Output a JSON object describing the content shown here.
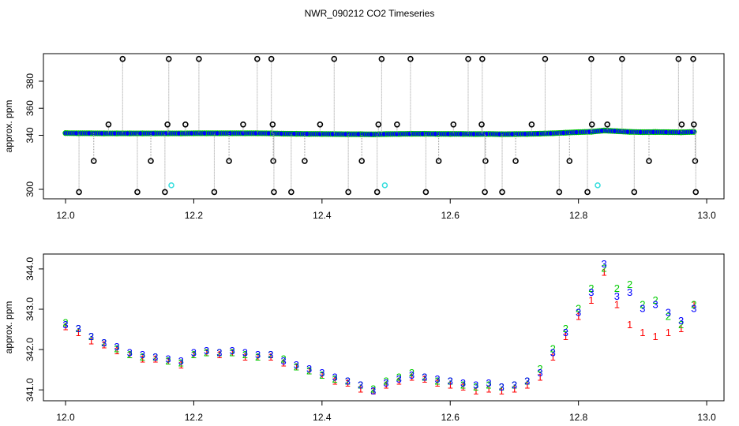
{
  "title": "NWR_090212  CO2 Timeseries",
  "chart_data": [
    {
      "type": "scatter",
      "ylabel": "approx. ppm",
      "xlim": [
        11.9655,
        13.027
      ],
      "xticks": [
        {
          "value": 12,
          "label": "12.0"
        },
        12.2,
        12.4,
        12.6,
        12.8,
        {
          "value": 13,
          "label": "13.0"
        }
      ],
      "ylim": [
        293,
        400.4
      ],
      "yticks": [
        300,
        340,
        360,
        380
      ],
      "series": [
        {
          "style": "points",
          "color": "#0000ff",
          "edgecolor": "#00cc00",
          "x": [
            12.0,
            12.02,
            12.04,
            12.06,
            12.08,
            12.1,
            12.12,
            12.14,
            12.16,
            12.18,
            12.2,
            12.22,
            12.24,
            12.26,
            12.28,
            12.3,
            12.32,
            12.34,
            12.36,
            12.38,
            12.4,
            12.42,
            12.44,
            12.46,
            12.48,
            12.5,
            12.52,
            12.54,
            12.56,
            12.58,
            12.6,
            12.62,
            12.64,
            12.66,
            12.68,
            12.7,
            12.72,
            12.74,
            12.76,
            12.78,
            12.8,
            12.82,
            12.84,
            12.86,
            12.88,
            12.9,
            12.92,
            12.94,
            12.96,
            12.98
          ],
          "values": [
            341.6,
            341.5,
            341.5,
            341.4,
            341.4,
            341.4,
            341.4,
            341.4,
            341.4,
            341.4,
            341.5,
            341.5,
            341.5,
            341.5,
            341.5,
            341.5,
            341.4,
            341.2,
            341.1,
            341.0,
            341.0,
            340.9,
            340.8,
            340.8,
            340.7,
            340.9,
            341.0,
            341.1,
            341.1,
            341.0,
            341.0,
            341.0,
            340.9,
            341.0,
            340.8,
            340.9,
            341.0,
            341.2,
            341.5,
            341.9,
            342.3,
            342.6,
            343.5,
            343.0,
            342.5,
            342.3,
            342.4,
            342.3,
            342.2,
            342.5
          ]
        },
        {
          "style": "spikes",
          "color": "#000000",
          "spike_color": "#999999",
          "x": [
            12.089,
            12.161,
            12.208,
            12.299,
            12.321,
            12.419,
            12.493,
            12.538,
            12.628,
            12.65,
            12.748,
            12.82,
            12.868,
            12.956,
            12.979,
            12.067,
            12.159,
            12.187,
            12.277,
            12.323,
            12.397,
            12.488,
            12.517,
            12.605,
            12.649,
            12.727,
            12.821,
            12.845,
            12.961,
            12.98,
            12.044,
            12.133,
            12.255,
            12.324,
            12.373,
            12.462,
            12.582,
            12.655,
            12.702,
            12.786,
            12.91,
            12.982,
            12.021,
            12.112,
            12.155,
            12.232,
            12.325,
            12.352,
            12.441,
            12.486,
            12.562,
            12.654,
            12.681,
            12.77,
            12.814,
            12.887,
            12.983
          ],
          "values": [
            396.5,
            396.5,
            396.5,
            396.5,
            396.5,
            396.5,
            396.5,
            396.5,
            396.5,
            396.5,
            396.5,
            396.5,
            396.5,
            396.5,
            396.5,
            348,
            348,
            348,
            348,
            348,
            348,
            348,
            348,
            348,
            348,
            348,
            348,
            348,
            348,
            348,
            321,
            321,
            321,
            321,
            321,
            321,
            321,
            321,
            321,
            321,
            321,
            321,
            298,
            298,
            298,
            298,
            298,
            298,
            298,
            298,
            298,
            298,
            298,
            298,
            298,
            298,
            298
          ]
        },
        {
          "style": "open",
          "color": "#33dddd",
          "x": [
            12.165,
            12.498,
            12.83
          ],
          "values": [
            303,
            303,
            303
          ]
        }
      ]
    },
    {
      "type": "scatter",
      "ylabel": "approx. ppm",
      "xlim": [
        11.9655,
        13.027
      ],
      "xticks": [
        {
          "value": 12,
          "label": "12.0"
        },
        12.2,
        12.4,
        12.6,
        12.8,
        {
          "value": 13,
          "label": "13.0"
        }
      ],
      "ylim": [
        340.73,
        344.37
      ],
      "yticks": [
        {
          "value": 341,
          "label": "341.0"
        },
        {
          "value": 342,
          "label": "342.0"
        },
        {
          "value": 343,
          "label": "343.0"
        },
        {
          "value": 344,
          "label": "344.0"
        }
      ],
      "x": [
        12.0,
        12.02,
        12.04,
        12.06,
        12.08,
        12.1,
        12.12,
        12.14,
        12.16,
        12.18,
        12.2,
        12.22,
        12.24,
        12.26,
        12.28,
        12.3,
        12.32,
        12.34,
        12.36,
        12.38,
        12.4,
        12.42,
        12.44,
        12.46,
        12.48,
        12.5,
        12.52,
        12.54,
        12.56,
        12.58,
        12.6,
        12.62,
        12.64,
        12.66,
        12.68,
        12.7,
        12.72,
        12.74,
        12.76,
        12.78,
        12.8,
        12.82,
        12.84,
        12.86,
        12.88,
        12.9,
        12.92,
        12.94,
        12.96,
        12.98
      ],
      "series": [
        {
          "symbol": "1",
          "color": "#ff0000",
          "values": [
            342.55,
            342.4,
            342.2,
            342.1,
            341.95,
            341.85,
            341.75,
            341.75,
            341.7,
            341.6,
            341.85,
            341.9,
            341.85,
            341.9,
            341.8,
            341.8,
            341.8,
            341.65,
            341.55,
            341.45,
            341.35,
            341.2,
            341.15,
            341.0,
            340.95,
            341.1,
            341.2,
            341.3,
            341.25,
            341.15,
            341.1,
            341.05,
            340.95,
            341.0,
            340.95,
            341.0,
            341.1,
            341.3,
            341.8,
            342.3,
            342.8,
            343.2,
            343.9,
            343.1,
            342.6,
            342.4,
            342.3,
            342.4,
            342.5,
            343.1
          ]
        },
        {
          "symbol": "2",
          "color": "#00cc00",
          "values": [
            342.65,
            342.5,
            342.3,
            342.15,
            342.0,
            341.85,
            341.8,
            341.8,
            341.7,
            341.65,
            341.85,
            341.9,
            341.9,
            341.9,
            341.85,
            341.8,
            341.85,
            341.75,
            341.55,
            341.45,
            341.35,
            341.25,
            341.2,
            341.1,
            341.0,
            341.2,
            341.3,
            341.4,
            341.3,
            341.2,
            341.2,
            341.1,
            341.05,
            341.1,
            341.05,
            341.1,
            341.2,
            341.5,
            342.0,
            342.5,
            343.0,
            343.5,
            344.0,
            343.5,
            343.6,
            343.1,
            343.2,
            342.8,
            342.6,
            343.1
          ]
        },
        {
          "symbol": "3",
          "color": "#0000ff",
          "values": [
            342.6,
            342.5,
            342.3,
            342.15,
            342.05,
            341.9,
            341.85,
            341.8,
            341.75,
            341.7,
            341.9,
            341.95,
            341.9,
            341.95,
            341.9,
            341.85,
            341.85,
            341.7,
            341.6,
            341.5,
            341.4,
            341.3,
            341.2,
            341.1,
            340.95,
            341.15,
            341.25,
            341.35,
            341.3,
            341.25,
            341.2,
            341.15,
            341.1,
            341.15,
            341.05,
            341.1,
            341.2,
            341.4,
            341.9,
            342.4,
            342.9,
            343.4,
            344.1,
            343.3,
            343.4,
            343.0,
            343.1,
            342.9,
            342.7,
            343.0
          ]
        }
      ]
    }
  ]
}
